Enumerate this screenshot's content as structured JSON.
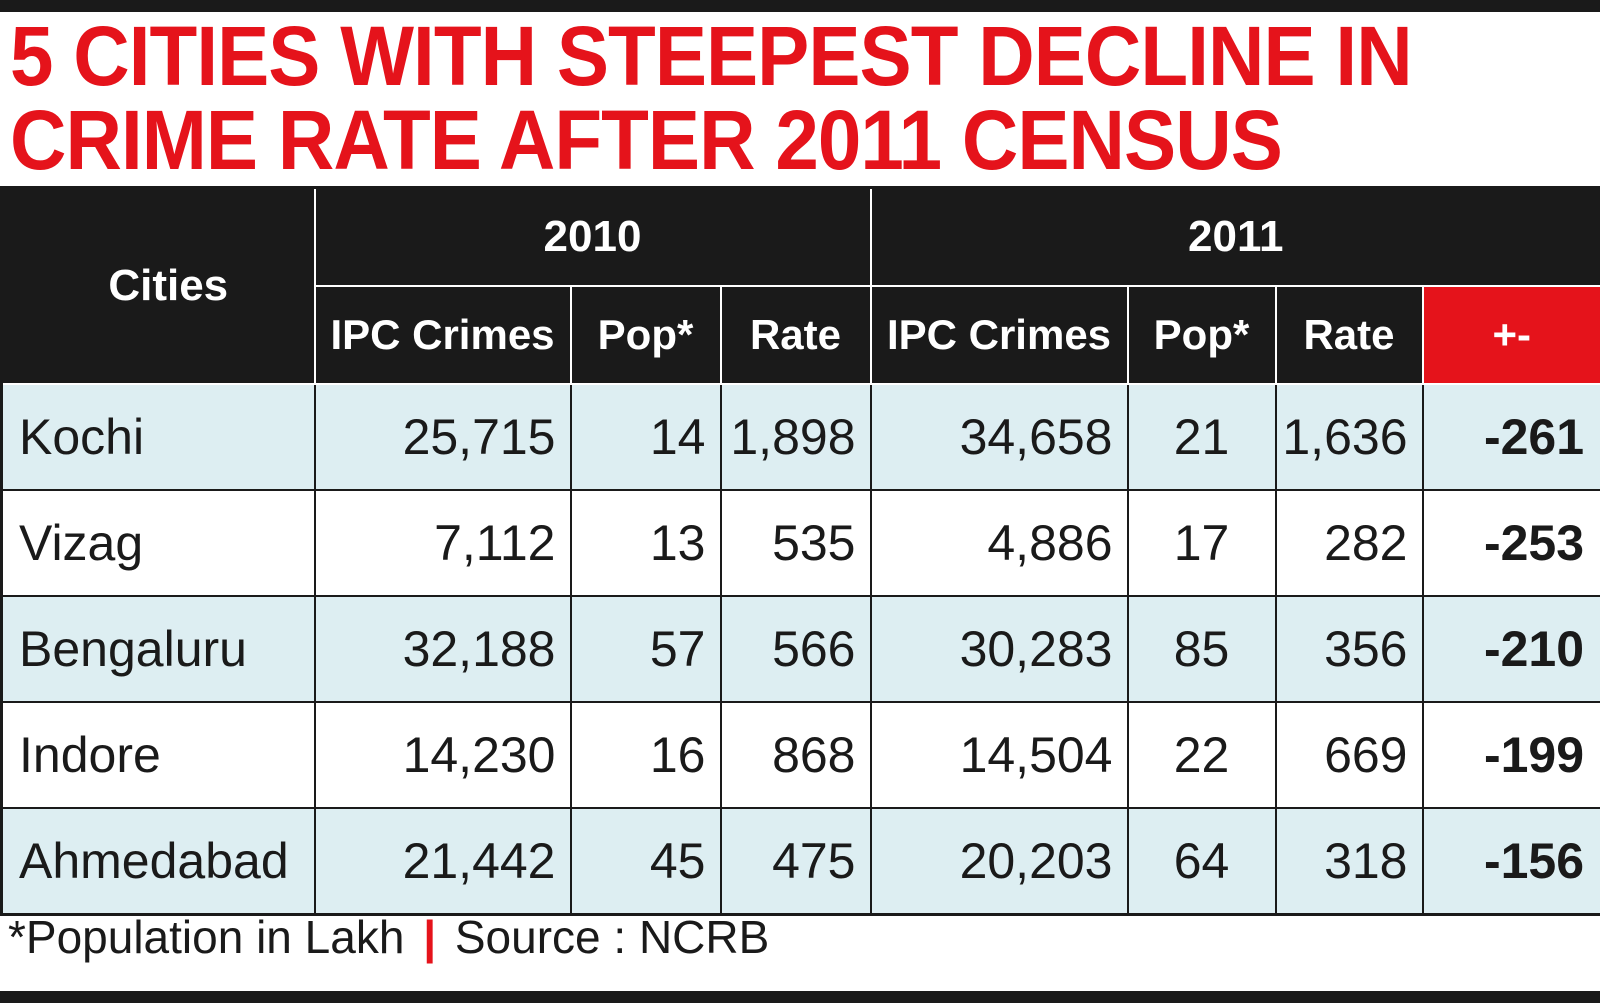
{
  "headline": {
    "line1": "5 CITIES WITH STEEPEST DECLINE IN",
    "line2": "CRIME RATE AFTER 2011 CENSUS"
  },
  "table": {
    "cities_header": "Cities",
    "year_2010": "2010",
    "year_2011": "2011",
    "columns": [
      "IPC Crimes",
      "Pop*",
      "Rate",
      "IPC Crimes",
      "Pop*",
      "Rate",
      "+-"
    ],
    "rows": [
      {
        "city": "Kochi",
        "ipc_2010": "25,715",
        "pop_2010": "14",
        "rate_2010": "1,898",
        "ipc_2011": "34,658",
        "pop_2011": "21",
        "rate_2011": "1,636",
        "change": "-261"
      },
      {
        "city": "Vizag",
        "ipc_2010": "7,112",
        "pop_2010": "13",
        "rate_2010": "535",
        "ipc_2011": "4,886",
        "pop_2011": "17",
        "rate_2011": "282",
        "change": "-253"
      },
      {
        "city": "Bengaluru",
        "ipc_2010": "32,188",
        "pop_2010": "57",
        "rate_2010": "566",
        "ipc_2011": "30,283",
        "pop_2011": "85",
        "rate_2011": "356",
        "change": "-210"
      },
      {
        "city": "Indore",
        "ipc_2010": "14,230",
        "pop_2010": "16",
        "rate_2010": "868",
        "ipc_2011": "14,504",
        "pop_2011": "22",
        "rate_2011": "669",
        "change": "-199"
      },
      {
        "city": "Ahmedabad",
        "ipc_2010": "21,442",
        "pop_2010": "45",
        "rate_2010": "475",
        "ipc_2011": "20,203",
        "pop_2011": "64",
        "rate_2011": "318",
        "change": "-156"
      }
    ]
  },
  "footnote": {
    "note": "*Population in Lakh",
    "separator": "|",
    "source": "Source : NCRB"
  },
  "colors": {
    "accent_red": "#e5131b",
    "header_black": "#1a1a1a",
    "row_tint": "#ddeef2"
  },
  "chart_data": {
    "type": "table",
    "title": "5 CITIES WITH STEEPEST DECLINE IN CRIME RATE AFTER 2011 CENSUS",
    "groups": [
      "2010",
      "2011"
    ],
    "columns": [
      "Cities",
      "IPC Crimes",
      "Pop*",
      "Rate",
      "IPC Crimes",
      "Pop*",
      "Rate",
      "+-"
    ],
    "rows": [
      [
        "Kochi",
        25715,
        14,
        1898,
        34658,
        21,
        1636,
        -261
      ],
      [
        "Vizag",
        7112,
        13,
        535,
        4886,
        17,
        282,
        -253
      ],
      [
        "Bengaluru",
        32188,
        57,
        566,
        30283,
        85,
        356,
        -210
      ],
      [
        "Indore",
        14230,
        16,
        868,
        14504,
        22,
        669,
        -199
      ],
      [
        "Ahmedabad",
        21442,
        45,
        475,
        20203,
        64,
        318,
        -156
      ]
    ],
    "note": "*Population in Lakh",
    "source": "Source : NCRB"
  }
}
